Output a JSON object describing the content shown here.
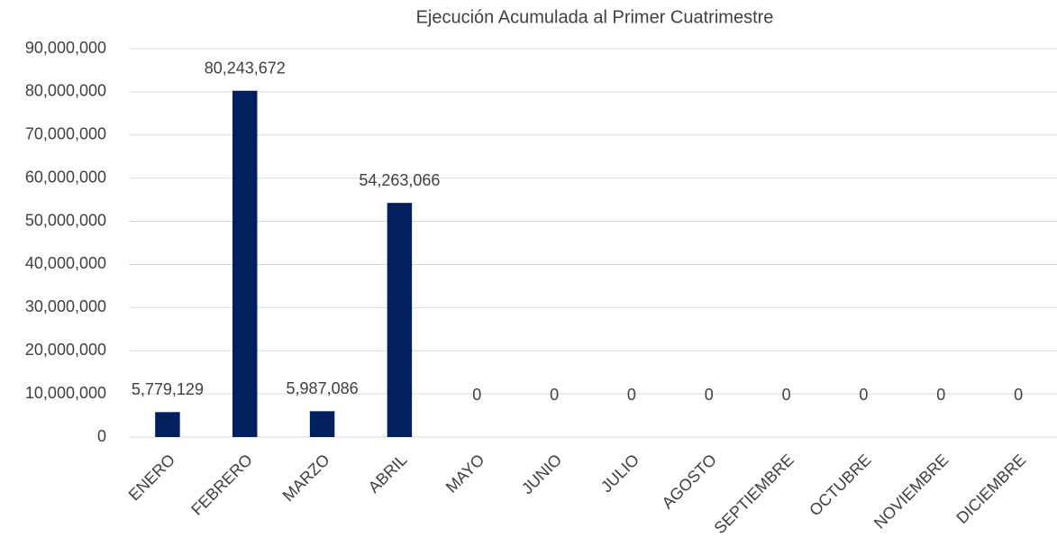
{
  "chart_data": {
    "type": "bar",
    "title": "Ejecución Acumulada al Primer Cuatrimestre",
    "categories": [
      "ENERO",
      "FEBRERO",
      "MARZO",
      "ABRIL",
      "MAYO",
      "JUNIO",
      "JULIO",
      "AGOSTO",
      "SEPTIEMBRE",
      "OCTUBRE",
      "NOVIEMBRE",
      "DICIEMBRE"
    ],
    "values": [
      5779129,
      80243672,
      5987086,
      54263066,
      0,
      0,
      0,
      0,
      0,
      0,
      0,
      0
    ],
    "value_labels": [
      "5,779,129",
      "80,243,672",
      "5,987,086",
      "54,263,066",
      "0",
      "0",
      "0",
      "0",
      "0",
      "0",
      "0",
      "0"
    ],
    "color": "#002060",
    "ylim": [
      0,
      90000000
    ],
    "yticks": [
      0,
      {
        "value": 10000000,
        "label": "10,000,000"
      },
      {
        "value": 20000000,
        "label": "20,000,000"
      },
      {
        "value": 30000000,
        "label": "30,000,000"
      },
      {
        "value": 40000000,
        "label": "40,000,000"
      },
      {
        "value": 50000000,
        "label": "50,000,000"
      },
      {
        "value": 60000000,
        "label": "60,000,000"
      },
      {
        "value": 70000000,
        "label": "70,000,000"
      },
      {
        "value": 80000000,
        "label": "80,000,000"
      },
      {
        "value": 90000000,
        "label": "90,000,000"
      }
    ],
    "grid": true
  }
}
